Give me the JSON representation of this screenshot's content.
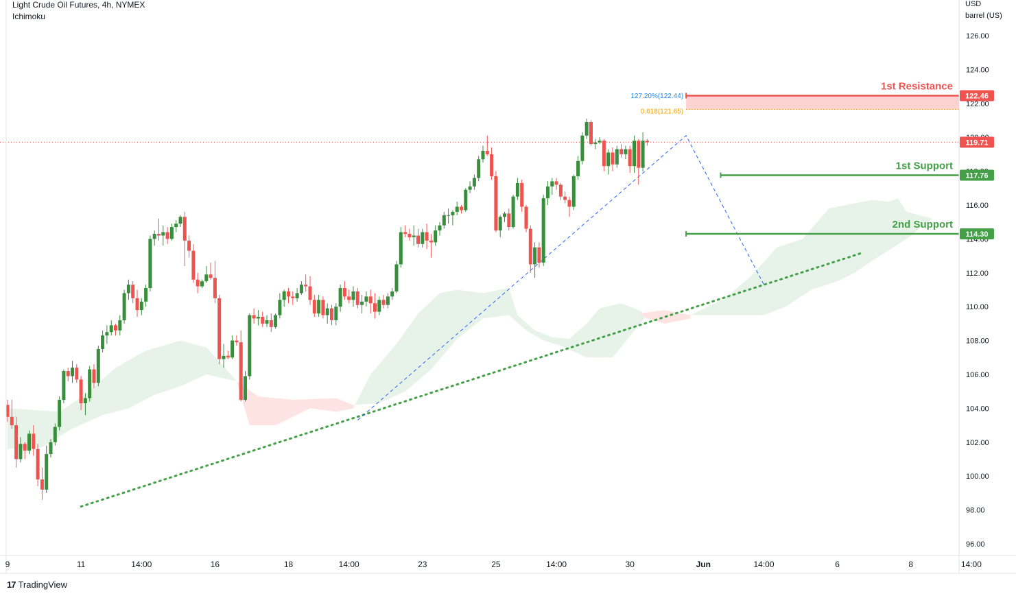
{
  "header": {
    "title": "Light Crude Oil Futures, 4h, NYMEX",
    "indicator": "Ichimoku"
  },
  "axis_unit": {
    "line1": "USD",
    "line2": "barrel (US)"
  },
  "footer": {
    "brand": "TradingView"
  },
  "colors": {
    "up": "#388e3c",
    "down": "#ef5350",
    "resistance": "#ef5350",
    "support": "#43a047",
    "fib_blue": "#1e88e5",
    "fib_orange": "#f59f00",
    "cloud_green": "#e7f3e8",
    "cloud_red": "#fde3e1",
    "trendline": "#43a047",
    "last_price": "#ef5350"
  },
  "chart_data": {
    "type": "candlestick",
    "title": "Light Crude Oil Futures, 4h, NYMEX",
    "ylabel": "USD barrel (US)",
    "ylim": [
      95,
      128
    ],
    "y_ticks": [
      "126.00",
      "124.00",
      "122.00",
      "120.00",
      "118.00",
      "116.00",
      "114.00",
      "112.00",
      "110.00",
      "108.00",
      "106.00",
      "104.00",
      "102.00",
      "100.00",
      "98.00",
      "96.00"
    ],
    "x_ticks": [
      "9",
      "11",
      "14:00",
      "16",
      "18",
      "14:00",
      "23",
      "25",
      "14:00",
      "30",
      "Jun",
      "14:00",
      "6",
      "8",
      "14:00"
    ],
    "x_tick_bars": [
      0,
      17,
      31,
      48,
      65,
      79,
      96,
      113,
      127,
      144,
      161,
      175,
      192,
      209,
      223
    ],
    "last_price": 119.71,
    "levels": [
      {
        "name": "1st Resistance",
        "value": 122.46,
        "label": "122.46",
        "start_bar": 157
      },
      {
        "name": "1st Support",
        "value": 117.76,
        "label": "117.76",
        "start_bar": 165
      },
      {
        "name": "2nd Support",
        "value": 114.3,
        "label": "114.30",
        "start_bar": 157
      }
    ],
    "fib_labels": [
      {
        "text": "127.20%(122.44)",
        "value": 122.44
      },
      {
        "text": "0.618(121.65)",
        "value": 121.65
      }
    ],
    "fib_zone": [
      121.65,
      122.44
    ],
    "fib_path": [
      {
        "bar": 81,
        "price": 103.3
      },
      {
        "bar": 157,
        "price": 120.1
      },
      {
        "bar": 175,
        "price": 111.3
      }
    ],
    "trendline": [
      {
        "bar": 17,
        "price": 98.2
      },
      {
        "bar": 198,
        "price": 113.2
      }
    ],
    "candles": [
      [
        104.2,
        104.5,
        103.2,
        103.5
      ],
      [
        103.5,
        104.5,
        102.8,
        103.0
      ],
      [
        103.0,
        103.5,
        100.5,
        101.0
      ],
      [
        101.0,
        102.3,
        100.8,
        101.9
      ],
      [
        101.9,
        102.0,
        101.0,
        101.5
      ],
      [
        101.5,
        102.7,
        101.3,
        102.5
      ],
      [
        102.5,
        103.0,
        101.2,
        101.6
      ],
      [
        101.6,
        101.9,
        99.4,
        99.8
      ],
      [
        99.8,
        100.5,
        98.6,
        99.2
      ],
      [
        99.2,
        101.8,
        99.0,
        101.3
      ],
      [
        101.3,
        102.2,
        101.1,
        102.0
      ],
      [
        102.0,
        103.1,
        101.8,
        102.9
      ],
      [
        102.9,
        104.7,
        102.7,
        104.5
      ],
      [
        104.5,
        106.3,
        104.3,
        106.2
      ],
      [
        106.2,
        106.4,
        105.6,
        105.9
      ],
      [
        105.9,
        106.8,
        105.5,
        106.4
      ],
      [
        106.4,
        106.6,
        105.5,
        105.7
      ],
      [
        105.7,
        105.9,
        103.9,
        104.3
      ],
      [
        104.3,
        104.9,
        103.6,
        104.6
      ],
      [
        104.6,
        106.5,
        104.4,
        106.3
      ],
      [
        106.3,
        106.6,
        105.2,
        105.5
      ],
      [
        105.5,
        107.7,
        105.3,
        107.5
      ],
      [
        107.5,
        108.6,
        107.3,
        108.3
      ],
      [
        108.3,
        108.9,
        107.8,
        108.5
      ],
      [
        108.5,
        109.2,
        108.3,
        108.9
      ],
      [
        108.9,
        109.0,
        108.3,
        108.6
      ],
      [
        108.6,
        109.5,
        108.3,
        109.2
      ],
      [
        109.2,
        111.0,
        109.0,
        110.8
      ],
      [
        110.8,
        111.6,
        110.4,
        111.3
      ],
      [
        111.3,
        111.5,
        110.2,
        110.5
      ],
      [
        110.5,
        111.0,
        109.4,
        109.8
      ],
      [
        109.8,
        110.5,
        109.5,
        110.3
      ],
      [
        110.3,
        111.3,
        110.0,
        111.1
      ],
      [
        111.1,
        114.2,
        110.9,
        114.0
      ],
      [
        114.0,
        114.5,
        113.6,
        114.3
      ],
      [
        114.3,
        115.2,
        113.9,
        114.2
      ],
      [
        114.2,
        114.8,
        113.6,
        114.4
      ],
      [
        114.4,
        114.7,
        113.7,
        114.0
      ],
      [
        114.0,
        114.9,
        113.9,
        114.7
      ],
      [
        114.7,
        115.1,
        114.4,
        114.9
      ],
      [
        114.9,
        115.4,
        114.7,
        115.3
      ],
      [
        115.3,
        115.6,
        112.4,
        113.9
      ],
      [
        113.9,
        114.2,
        112.9,
        113.3
      ],
      [
        113.3,
        113.7,
        111.4,
        111.6
      ],
      [
        111.6,
        112.0,
        110.8,
        111.2
      ],
      [
        111.2,
        111.6,
        111.1,
        111.5
      ],
      [
        111.5,
        112.4,
        111.4,
        111.9
      ],
      [
        111.9,
        112.6,
        111.6,
        111.7
      ],
      [
        111.7,
        112.7,
        110.2,
        110.5
      ],
      [
        110.5,
        110.7,
        106.6,
        106.9
      ],
      [
        106.9,
        107.8,
        106.4,
        107.1
      ],
      [
        107.1,
        107.4,
        106.9,
        107.0
      ],
      [
        107.0,
        108.3,
        106.9,
        108.0
      ],
      [
        108.0,
        108.3,
        107.7,
        107.9
      ],
      [
        107.9,
        108.6,
        104.4,
        104.5
      ],
      [
        104.5,
        106.2,
        104.4,
        105.9
      ],
      [
        105.9,
        109.6,
        105.7,
        109.5
      ],
      [
        109.5,
        109.9,
        109.0,
        109.3
      ],
      [
        109.3,
        109.8,
        108.9,
        109.4
      ],
      [
        109.4,
        109.7,
        108.8,
        109.0
      ],
      [
        109.0,
        109.5,
        108.8,
        109.2
      ],
      [
        109.2,
        109.6,
        108.5,
        108.8
      ],
      [
        108.8,
        109.6,
        108.7,
        109.5
      ],
      [
        109.5,
        110.8,
        109.3,
        110.4
      ],
      [
        110.4,
        111.0,
        110.0,
        110.9
      ],
      [
        110.9,
        111.1,
        110.2,
        110.6
      ],
      [
        110.6,
        110.9,
        110.1,
        110.5
      ],
      [
        110.5,
        111.1,
        110.3,
        110.8
      ],
      [
        110.8,
        111.5,
        110.7,
        111.3
      ],
      [
        111.3,
        111.9,
        110.9,
        111.2
      ],
      [
        111.2,
        111.8,
        110.1,
        110.4
      ],
      [
        110.4,
        110.7,
        109.4,
        109.6
      ],
      [
        109.6,
        110.7,
        109.4,
        110.4
      ],
      [
        110.4,
        110.6,
        109.3,
        109.5
      ],
      [
        109.5,
        110.2,
        109.0,
        109.9
      ],
      [
        109.9,
        110.1,
        108.9,
        109.2
      ],
      [
        109.2,
        110.2,
        108.9,
        110.0
      ],
      [
        110.0,
        111.3,
        109.7,
        111.1
      ],
      [
        111.1,
        111.5,
        110.4,
        110.6
      ],
      [
        110.6,
        111.0,
        110.2,
        110.4
      ],
      [
        110.4,
        111.2,
        110.0,
        110.9
      ],
      [
        110.9,
        111.1,
        109.9,
        110.1
      ],
      [
        110.1,
        110.7,
        109.6,
        110.3
      ],
      [
        110.3,
        110.9,
        110.0,
        110.6
      ],
      [
        110.6,
        111.0,
        109.6,
        110.2
      ],
      [
        110.2,
        110.8,
        109.3,
        109.7
      ],
      [
        109.7,
        110.6,
        109.5,
        110.4
      ],
      [
        110.4,
        110.7,
        109.9,
        110.1
      ],
      [
        110.1,
        110.8,
        109.9,
        110.6
      ],
      [
        110.6,
        111.1,
        110.4,
        110.9
      ],
      [
        110.9,
        112.7,
        110.8,
        112.5
      ],
      [
        112.5,
        114.7,
        112.3,
        114.4
      ],
      [
        114.4,
        114.8,
        114.1,
        114.3
      ],
      [
        114.3,
        114.6,
        113.9,
        114.1
      ],
      [
        114.1,
        114.8,
        113.6,
        114.2
      ],
      [
        114.2,
        114.6,
        113.5,
        113.7
      ],
      [
        113.7,
        114.6,
        113.5,
        114.4
      ],
      [
        114.4,
        114.9,
        113.4,
        113.9
      ],
      [
        113.9,
        114.3,
        112.9,
        113.8
      ],
      [
        113.8,
        114.8,
        113.6,
        114.5
      ],
      [
        114.5,
        115.0,
        114.2,
        114.8
      ],
      [
        114.8,
        115.6,
        114.6,
        115.4
      ],
      [
        115.4,
        115.8,
        114.9,
        115.4
      ],
      [
        115.4,
        115.7,
        114.8,
        115.6
      ],
      [
        115.6,
        116.2,
        115.4,
        115.9
      ],
      [
        115.9,
        116.0,
        115.5,
        115.7
      ],
      [
        115.7,
        117.0,
        115.6,
        116.9
      ],
      [
        116.9,
        117.4,
        116.7,
        117.1
      ],
      [
        117.1,
        117.8,
        116.9,
        117.6
      ],
      [
        117.6,
        118.9,
        117.4,
        118.7
      ],
      [
        118.7,
        119.5,
        118.5,
        119.2
      ],
      [
        119.2,
        120.1,
        118.9,
        119.0
      ],
      [
        119.0,
        119.4,
        117.5,
        117.7
      ],
      [
        117.7,
        118.0,
        114.4,
        114.5
      ],
      [
        114.5,
        115.4,
        114.1,
        115.3
      ],
      [
        115.3,
        115.6,
        115.0,
        115.5
      ],
      [
        115.5,
        115.8,
        114.5,
        114.7
      ],
      [
        114.7,
        116.6,
        114.6,
        116.5
      ],
      [
        116.5,
        117.6,
        116.3,
        117.3
      ],
      [
        117.3,
        117.5,
        115.6,
        115.9
      ],
      [
        115.9,
        116.0,
        114.4,
        114.6
      ],
      [
        114.6,
        114.8,
        112.0,
        112.5
      ],
      [
        112.5,
        113.8,
        111.7,
        113.5
      ],
      [
        113.5,
        113.8,
        112.3,
        112.6
      ],
      [
        112.6,
        116.6,
        112.4,
        116.4
      ],
      [
        116.4,
        117.4,
        116.0,
        117.1
      ],
      [
        117.1,
        117.6,
        116.6,
        117.4
      ],
      [
        117.4,
        117.6,
        116.9,
        117.2
      ],
      [
        117.2,
        117.3,
        116.3,
        116.5
      ],
      [
        116.5,
        116.8,
        116.1,
        116.3
      ],
      [
        116.3,
        116.5,
        115.3,
        115.9
      ],
      [
        115.9,
        117.8,
        115.7,
        117.7
      ],
      [
        117.7,
        118.9,
        117.5,
        118.6
      ],
      [
        118.6,
        120.3,
        118.4,
        120.1
      ],
      [
        120.1,
        121.1,
        119.9,
        120.9
      ],
      [
        120.9,
        121.0,
        119.5,
        119.6
      ],
      [
        119.6,
        119.9,
        119.3,
        119.7
      ],
      [
        119.7,
        120.0,
        119.6,
        119.8
      ],
      [
        119.8,
        119.9,
        118.0,
        118.3
      ],
      [
        118.3,
        119.3,
        117.8,
        119.1
      ],
      [
        119.1,
        119.4,
        118.0,
        118.4
      ],
      [
        118.4,
        119.5,
        118.2,
        119.3
      ],
      [
        119.3,
        119.6,
        118.8,
        119.0
      ],
      [
        119.0,
        119.5,
        118.7,
        119.3
      ],
      [
        119.3,
        119.5,
        117.9,
        118.3
      ],
      [
        118.3,
        120.1,
        117.9,
        119.8
      ],
      [
        119.8,
        119.9,
        117.2,
        118.2
      ],
      [
        118.2,
        120.3,
        118.0,
        119.8
      ],
      [
        119.8,
        119.9,
        119.5,
        119.71
      ]
    ]
  }
}
